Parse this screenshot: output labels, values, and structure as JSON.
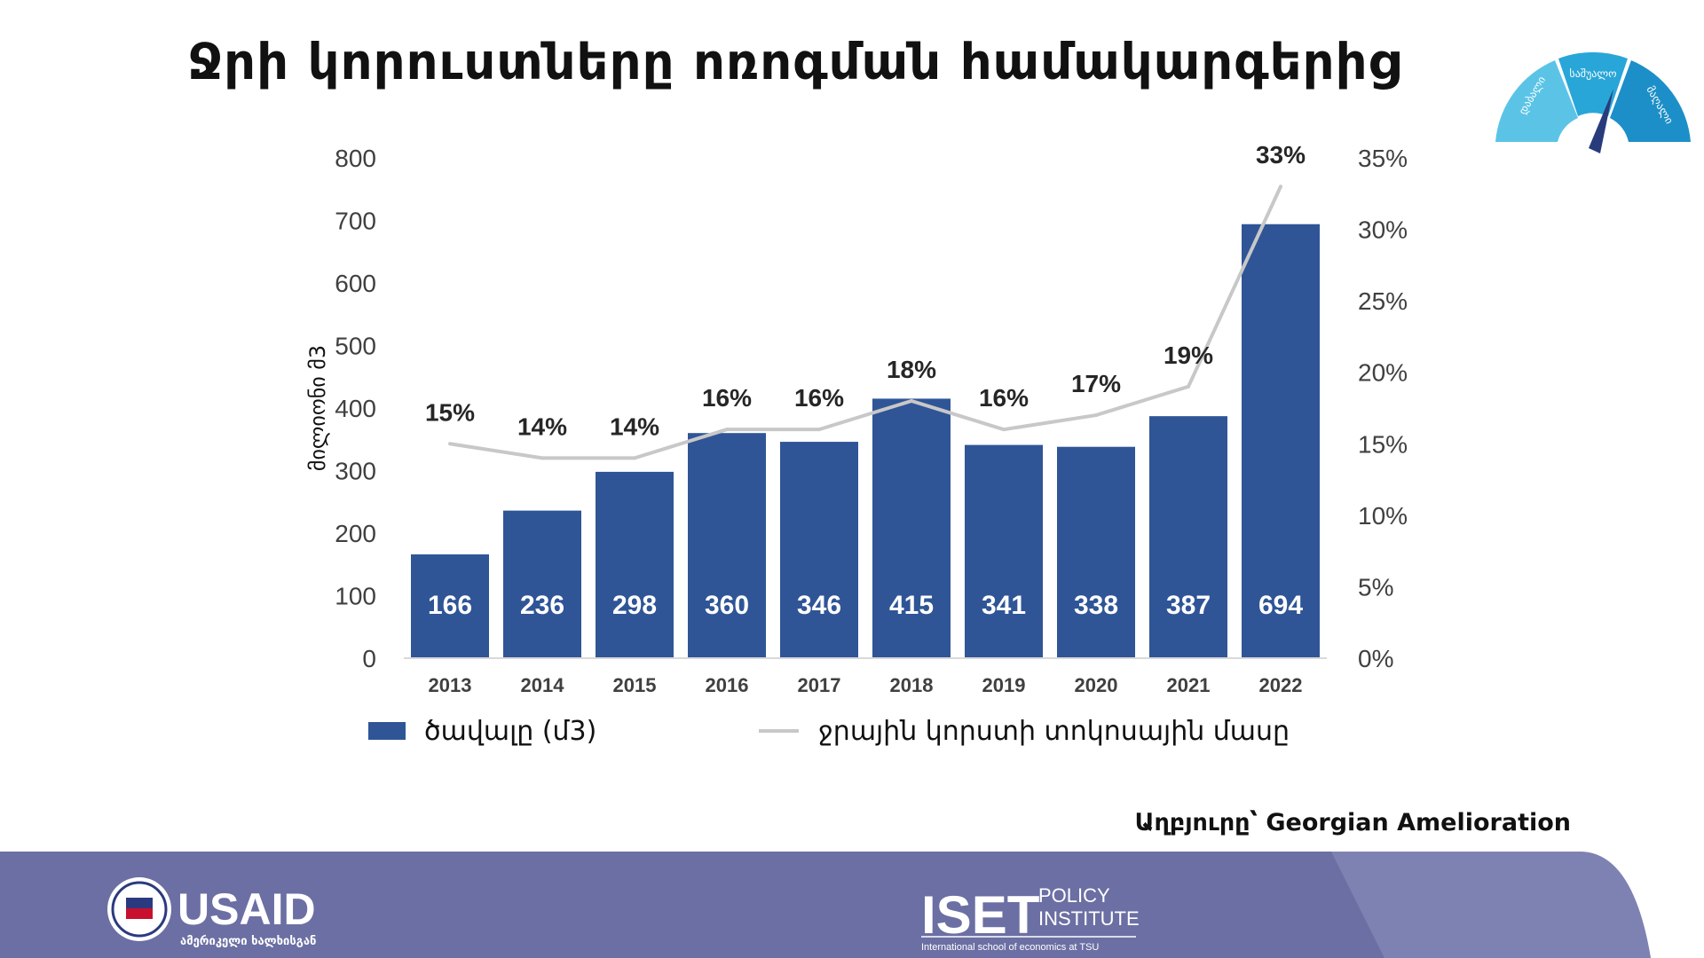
{
  "title": "Ջրի կորուստները ոռոգման համակարգերից",
  "gauge": {
    "labels": [
      "დაბალი",
      "საშუალო",
      "მაღალი"
    ],
    "colors": [
      "#5bc4e6",
      "#29a6d8",
      "#1d8fc8"
    ],
    "needle_color": "#283c7c"
  },
  "chart_data": {
    "type": "bar",
    "title": "Ջրի կորուստները ոռոգման համակարգերից",
    "categories": [
      "2013",
      "2014",
      "2015",
      "2016",
      "2017",
      "2018",
      "2019",
      "2020",
      "2021",
      "2022"
    ],
    "series": [
      {
        "name": "ծավալը (մ3)",
        "type": "bar",
        "axis": "left",
        "color": "#2f5597",
        "values": [
          166,
          236,
          298,
          360,
          346,
          415,
          341,
          338,
          387,
          694
        ],
        "labels": [
          "166",
          "236",
          "298",
          "360",
          "346",
          "415",
          "341",
          "338",
          "387",
          "694"
        ]
      },
      {
        "name": "ջրային կորստի տոկոսային մասը",
        "type": "line",
        "axis": "right",
        "color": "#c8c8c8",
        "values": [
          15,
          14,
          14,
          16,
          16,
          18,
          16,
          17,
          19,
          33
        ],
        "labels": [
          "15%",
          "14%",
          "14%",
          "16%",
          "16%",
          "18%",
          "16%",
          "17%",
          "19%",
          "33%"
        ]
      }
    ],
    "ylabel": "მილიონი მ3",
    "ylim": [
      0,
      800
    ],
    "yticks": [
      "0",
      "100",
      "200",
      "300",
      "400",
      "500",
      "600",
      "700",
      "800"
    ],
    "y2lim": [
      0,
      35
    ],
    "y2ticks": [
      "0%",
      "5%",
      "10%",
      "15%",
      "20%",
      "25%",
      "30%",
      "35%"
    ],
    "legend_position": "bottom"
  },
  "source": "Աղբյուրը՝  Georgian Amelioration",
  "footer": {
    "band_color": "#6b6fa3",
    "band_color_light": "#8b8fbd",
    "usaid": {
      "name": "USAID",
      "subtitle": "ამერიკელი ხალხისგან"
    },
    "iset": {
      "name": "ISET",
      "line1": "POLICY",
      "line2": "INSTITUTE",
      "tagline": "International school of economics at TSU"
    }
  }
}
